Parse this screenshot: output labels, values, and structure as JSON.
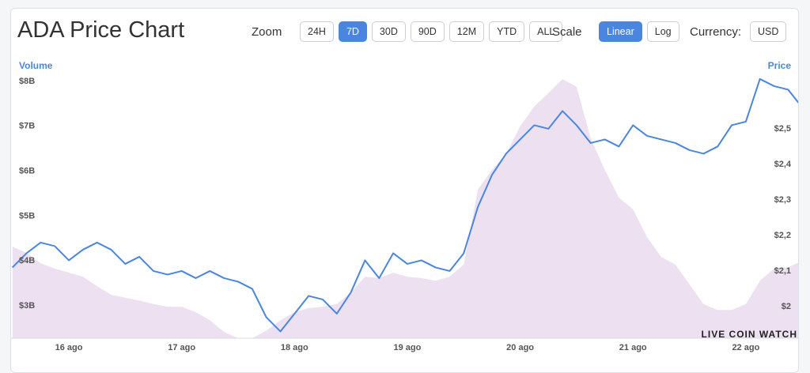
{
  "toolbar": {
    "title": "ADA Price Chart",
    "zoom_label": "Zoom",
    "zoom_options": [
      {
        "label": "24H",
        "active": false
      },
      {
        "label": "7D",
        "active": true
      },
      {
        "label": "30D",
        "active": false
      },
      {
        "label": "90D",
        "active": false
      },
      {
        "label": "12M",
        "active": false
      },
      {
        "label": "YTD",
        "active": false
      },
      {
        "label": "ALL",
        "active": false
      }
    ],
    "scale_label": "Scale",
    "scale_options": [
      {
        "label": "Linear",
        "active": true
      },
      {
        "label": "Log",
        "active": false
      }
    ],
    "currency_label": "Currency:",
    "currency_options": [
      {
        "label": "USD",
        "active": false
      }
    ]
  },
  "chart_data": {
    "type": "line",
    "ylabel": "Volume",
    "y2label": "Price",
    "watermark": "LIVE COIN WATCH",
    "categories": [
      null,
      null,
      null,
      null,
      "16 ago",
      null,
      null,
      null,
      null,
      null,
      null,
      null,
      "17 ago",
      null,
      null,
      null,
      null,
      null,
      null,
      null,
      "18 ago",
      null,
      null,
      null,
      null,
      null,
      null,
      null,
      "19 ago",
      null,
      null,
      null,
      null,
      null,
      null,
      null,
      "20 ago",
      null,
      null,
      null,
      null,
      null,
      null,
      null,
      "21 ago",
      null,
      null,
      null,
      null,
      null,
      null,
      null,
      "22 ago",
      null,
      null,
      null,
      null
    ],
    "ylim": [
      2.28,
      8.14
    ],
    "yticks": [
      {
        "value": 3,
        "label": "$3B"
      },
      {
        "value": 4,
        "label": "$4B"
      },
      {
        "value": 5,
        "label": "$5B"
      },
      {
        "value": 6,
        "label": "$6B"
      },
      {
        "value": 7,
        "label": "$7B"
      },
      {
        "value": 8,
        "label": "$8B"
      }
    ],
    "y2lim": [
      1.911,
      2.651
    ],
    "y2ticks": [
      {
        "value": 2,
        "label": "$2"
      },
      {
        "value": 2.1,
        "label": "$2,1"
      },
      {
        "value": 2.2,
        "label": "$2,2"
      },
      {
        "value": 2.3,
        "label": "$2,3"
      },
      {
        "value": 2.4,
        "label": "$2,4"
      },
      {
        "value": 2.5,
        "label": "$2,5"
      }
    ],
    "series": [
      {
        "type": "area",
        "color": "#ede0f1",
        "values": [
          4.32,
          4.18,
          3.95,
          3.83,
          3.74,
          3.65,
          3.44,
          3.25,
          3.18,
          3.12,
          3.04,
          2.98,
          2.98,
          2.86,
          2.68,
          2.42,
          2.28,
          2.28,
          2.45,
          2.68,
          2.86,
          2.95,
          2.98,
          3.04,
          3.3,
          3.65,
          3.62,
          3.74,
          3.65,
          3.62,
          3.56,
          3.65,
          3.92,
          5.59,
          6.03,
          6.38,
          7.0,
          7.44,
          7.74,
          8.05,
          7.88,
          6.73,
          6.03,
          5.41,
          5.15,
          4.53,
          4.09,
          3.92,
          3.48,
          3.04,
          2.91,
          2.91,
          3.04,
          3.56,
          3.83,
          3.86,
          4.0
        ]
      },
      {
        "type": "line",
        "axis": "y2",
        "color": "#4a86e0",
        "values": [
          2.11,
          2.15,
          2.18,
          2.17,
          2.13,
          2.16,
          2.18,
          2.16,
          2.12,
          2.14,
          2.1,
          2.09,
          2.1,
          2.08,
          2.1,
          2.08,
          2.07,
          2.05,
          1.97,
          1.93,
          1.98,
          2.03,
          2.02,
          1.98,
          2.04,
          2.13,
          2.08,
          2.15,
          2.12,
          2.13,
          2.11,
          2.1,
          2.15,
          2.28,
          2.37,
          2.43,
          2.47,
          2.51,
          2.5,
          2.55,
          2.51,
          2.46,
          2.47,
          2.45,
          2.51,
          2.48,
          2.47,
          2.46,
          2.44,
          2.43,
          2.45,
          2.51,
          2.52,
          2.64,
          2.62,
          2.61,
          2.56
        ]
      }
    ]
  }
}
